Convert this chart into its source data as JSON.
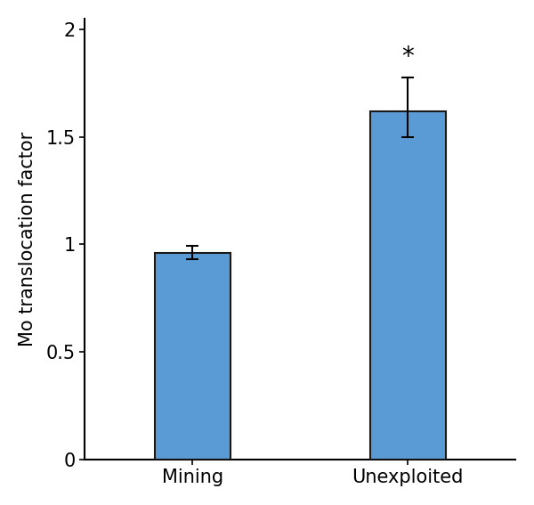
{
  "categories": [
    "Mining",
    "Unexploited"
  ],
  "values": [
    0.962,
    1.62
  ],
  "errors_upper": [
    0.03,
    0.155
  ],
  "errors_lower": [
    0.03,
    0.12
  ],
  "bar_color": "#5B9BD5",
  "bar_edgecolor": "#1a1a1a",
  "ylabel": "Mo translocation factor",
  "ylim": [
    0,
    2.05
  ],
  "yticks": [
    0,
    0.5,
    1,
    1.5,
    2
  ],
  "ytick_labels": [
    "0",
    "0.5",
    "1",
    "1.5",
    "2"
  ],
  "significance": [
    false,
    true
  ],
  "sig_marker": "*",
  "bar_width": 0.35,
  "xlim": [
    -0.5,
    1.5
  ],
  "figsize": [
    6.0,
    5.67
  ],
  "dpi": 100,
  "tick_fontsize": 15,
  "label_fontsize": 15,
  "sig_fontsize": 20
}
